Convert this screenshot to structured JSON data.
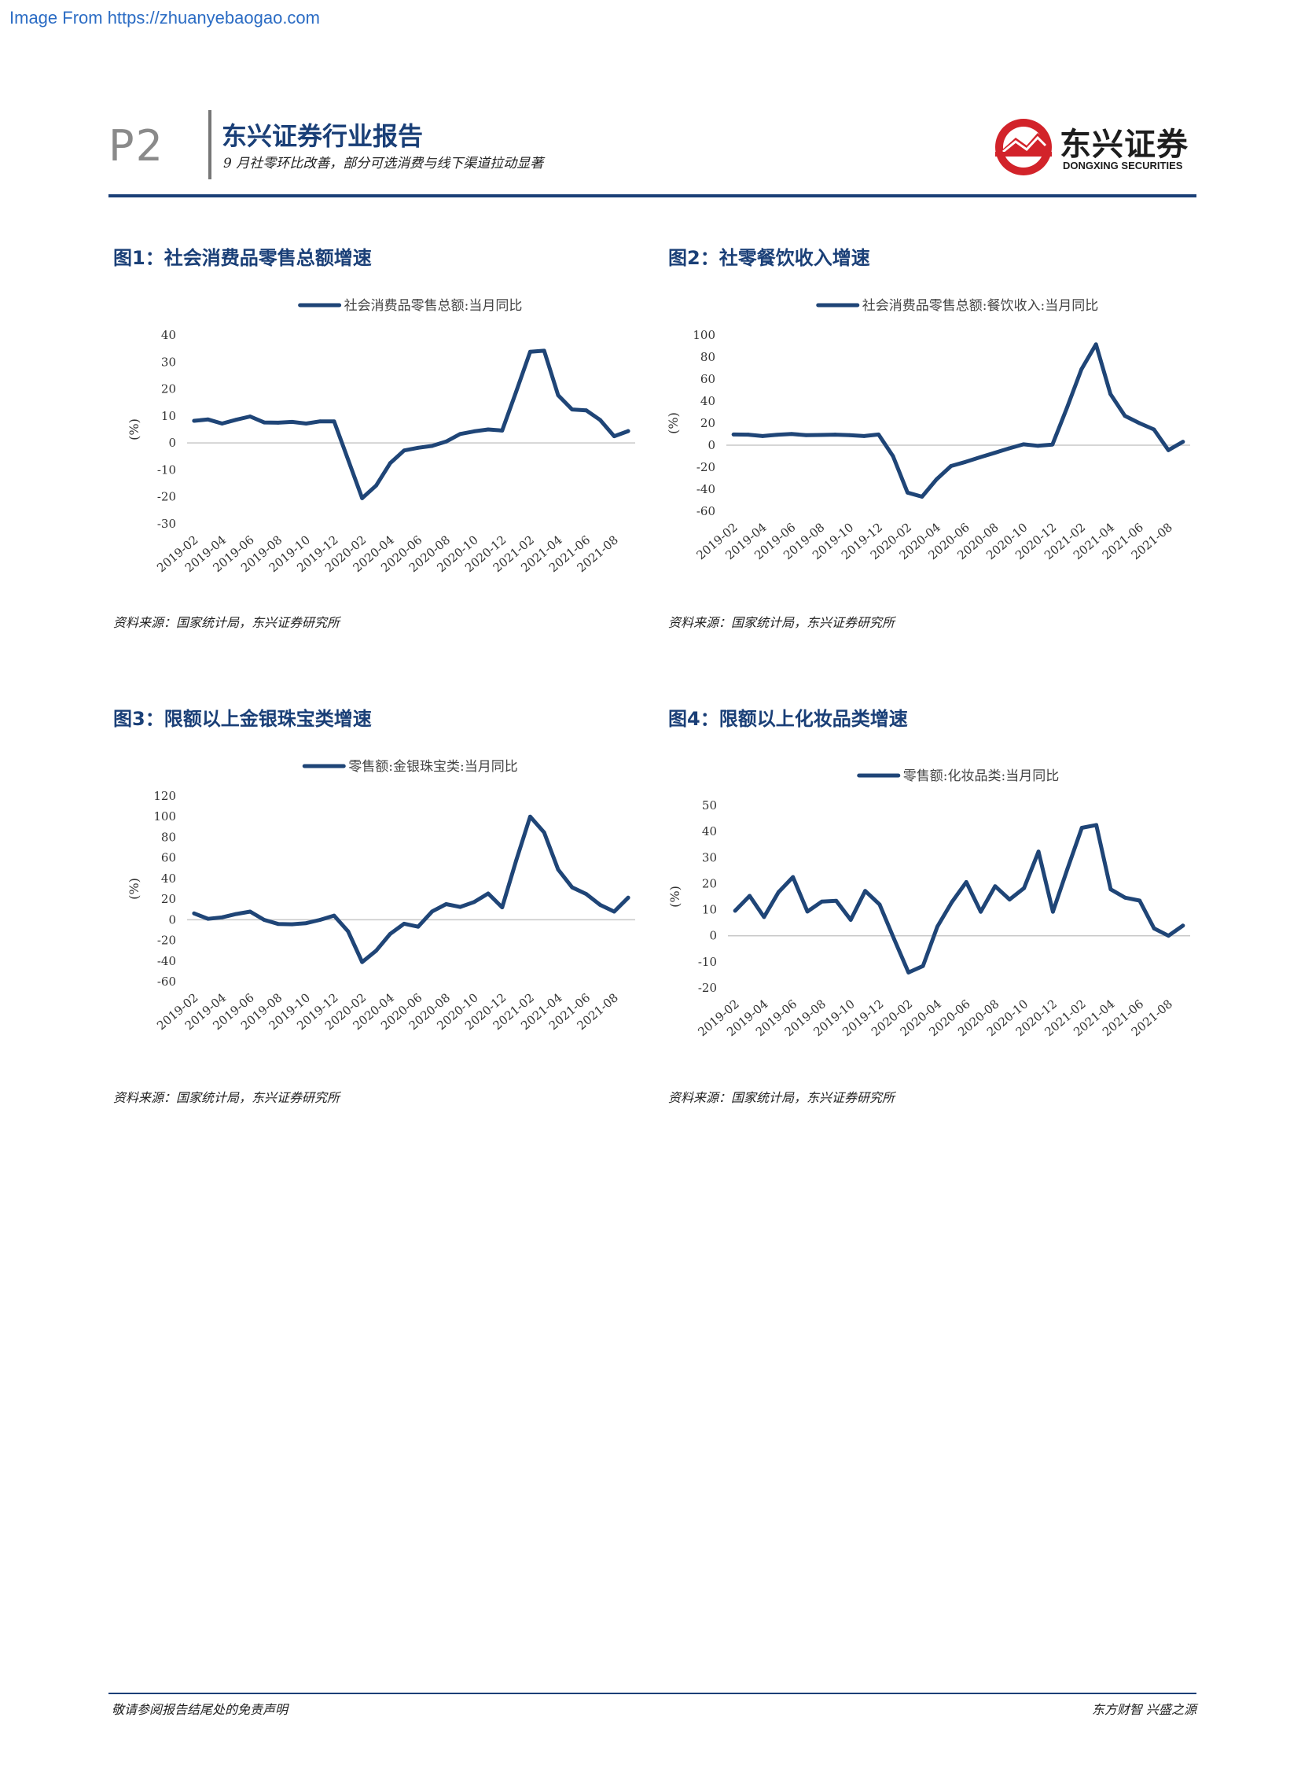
{
  "watermark": "Image From https://zhuanyebaogao.com",
  "header": {
    "page": "P2",
    "title": "东兴证券行业报告",
    "subtitle": "9 月社零环比改善，部分可选消费与线下渠道拉动显著",
    "logo_cn": "东兴证券",
    "logo_en": "DONGXING SECURITIES"
  },
  "colors": {
    "brand": "#1a3f77",
    "series": "#1f4577",
    "logo_red": "#d2232a"
  },
  "figures": [
    {
      "title": "图1：社会消费品零售总额增速",
      "source": "资料来源：国家统计局，东兴证券研究所",
      "unit_label": "(%)",
      "legend": "社会消费品零售总额:当月同比"
    },
    {
      "title": "图2：社零餐饮收入增速",
      "source": "资料来源：国家统计局，东兴证券研究所",
      "unit_label": "(%)",
      "legend": "社会消费品零售总额:餐饮收入:当月同比"
    },
    {
      "title": "图3：限额以上金银珠宝类增速",
      "source": "资料来源：国家统计局，东兴证券研究所",
      "unit_label": "(%)",
      "legend": "零售额:金银珠宝类:当月同比"
    },
    {
      "title": "图4：限额以上化妆品类增速",
      "source": "资料来源：国家统计局，东兴证券研究所",
      "unit_label": "(%)",
      "legend": "零售额:化妆品类:当月同比"
    }
  ],
  "chart_data": [
    {
      "type": "line",
      "x": [
        "2019-02",
        "2019-03",
        "2019-04",
        "2019-05",
        "2019-06",
        "2019-07",
        "2019-08",
        "2019-09",
        "2019-10",
        "2019-11",
        "2019-12",
        "2020-01",
        "2020-02",
        "2020-03",
        "2020-04",
        "2020-05",
        "2020-06",
        "2020-07",
        "2020-08",
        "2020-09",
        "2020-10",
        "2020-11",
        "2020-12",
        "2021-01",
        "2021-02",
        "2021-03",
        "2021-04",
        "2021-05",
        "2021-06",
        "2021-07",
        "2021-08",
        "2021-09"
      ],
      "x_tick_labels": [
        "2019-02",
        "2019-04",
        "2019-06",
        "2019-08",
        "2019-10",
        "2019-12",
        "2020-02",
        "2020-04",
        "2020-06",
        "2020-08",
        "2020-10",
        "2020-12",
        "2021-02",
        "2021-04",
        "2021-06",
        "2021-08"
      ],
      "series": [
        {
          "name": "社会消费品零售总额:当月同比",
          "values": [
            8.2,
            8.7,
            7.2,
            8.6,
            9.8,
            7.6,
            7.5,
            7.8,
            7.2,
            8.0,
            8.0,
            -6.2,
            -20.5,
            -15.8,
            -7.5,
            -2.8,
            -1.8,
            -1.1,
            0.5,
            3.3,
            4.3,
            5.0,
            4.6,
            19.0,
            33.8,
            34.2,
            17.7,
            12.4,
            12.1,
            8.5,
            2.5,
            4.4
          ]
        }
      ],
      "ylim": [
        -30,
        40
      ],
      "yticks": [
        40,
        30,
        20,
        10,
        0,
        -10,
        -20,
        -30
      ],
      "ylabel": "(%)"
    },
    {
      "type": "line",
      "x": [
        "2019-02",
        "2019-03",
        "2019-04",
        "2019-05",
        "2019-06",
        "2019-07",
        "2019-08",
        "2019-09",
        "2019-10",
        "2019-11",
        "2019-12",
        "2020-01",
        "2020-02",
        "2020-03",
        "2020-04",
        "2020-05",
        "2020-06",
        "2020-07",
        "2020-08",
        "2020-09",
        "2020-10",
        "2020-11",
        "2020-12",
        "2021-01",
        "2021-02",
        "2021-03",
        "2021-04",
        "2021-05",
        "2021-06",
        "2021-07",
        "2021-08",
        "2021-09"
      ],
      "x_tick_labels": [
        "2019-02",
        "2019-04",
        "2019-06",
        "2019-08",
        "2019-10",
        "2019-12",
        "2020-02",
        "2020-04",
        "2020-06",
        "2020-08",
        "2020-10",
        "2020-12",
        "2021-02",
        "2021-04",
        "2021-06",
        "2021-08"
      ],
      "series": [
        {
          "name": "社会消费品零售总额:餐饮收入:当月同比",
          "values": [
            9.7,
            9.6,
            8.3,
            9.4,
            10.2,
            9.1,
            9.3,
            9.6,
            9.1,
            8.3,
            9.7,
            -10.0,
            -43.1,
            -46.8,
            -31.1,
            -18.9,
            -15.2,
            -11.0,
            -7.0,
            -2.9,
            0.8,
            -0.6,
            0.6,
            34.0,
            68.9,
            91.6,
            46.4,
            26.6,
            20.0,
            14.3,
            -4.5,
            3.1
          ]
        }
      ],
      "ylim": [
        -60,
        100
      ],
      "yticks": [
        100,
        80,
        60,
        40,
        20,
        0,
        -20,
        -40,
        -60
      ],
      "ylabel": "(%)"
    },
    {
      "type": "line",
      "x": [
        "2019-02",
        "2019-03",
        "2019-04",
        "2019-05",
        "2019-06",
        "2019-07",
        "2019-08",
        "2019-09",
        "2019-10",
        "2019-11",
        "2019-12",
        "2020-01",
        "2020-02",
        "2020-03",
        "2020-04",
        "2020-05",
        "2020-06",
        "2020-07",
        "2020-08",
        "2020-09",
        "2020-10",
        "2020-11",
        "2020-12",
        "2021-01",
        "2021-02",
        "2021-03",
        "2021-04",
        "2021-05",
        "2021-06",
        "2021-07",
        "2021-08",
        "2021-09"
      ],
      "x_tick_labels": [
        "2019-02",
        "2019-04",
        "2019-06",
        "2019-08",
        "2019-10",
        "2019-12",
        "2020-02",
        "2020-04",
        "2020-06",
        "2020-08",
        "2020-10",
        "2020-12",
        "2021-02",
        "2021-04",
        "2021-06",
        "2021-08"
      ],
      "series": [
        {
          "name": "零售额:金银珠宝类:当月同比",
          "values": [
            6.1,
            0.9,
            2.3,
            5.5,
            7.9,
            -0.1,
            -4.1,
            -4.4,
            -3.3,
            -0.1,
            4.0,
            -11.3,
            -41.1,
            -30.0,
            -13.8,
            -3.9,
            -6.8,
            8.0,
            15.1,
            12.4,
            17.2,
            25.4,
            12.0,
            57.4,
            100.0,
            84.6,
            48.7,
            31.4,
            25.0,
            14.4,
            7.9,
            21.4
          ]
        }
      ],
      "ylim": [
        -60,
        120
      ],
      "yticks": [
        120,
        100,
        80,
        60,
        40,
        20,
        0,
        -20,
        -40,
        -60
      ],
      "ylabel": "(%)"
    },
    {
      "type": "line",
      "x": [
        "2019-02",
        "2019-03",
        "2019-04",
        "2019-05",
        "2019-06",
        "2019-07",
        "2019-08",
        "2019-09",
        "2019-10",
        "2019-11",
        "2019-12",
        "2020-01",
        "2020-02",
        "2020-03",
        "2020-04",
        "2020-05",
        "2020-06",
        "2020-07",
        "2020-08",
        "2020-09",
        "2020-10",
        "2020-11",
        "2020-12",
        "2021-01",
        "2021-02",
        "2021-03",
        "2021-04",
        "2021-05",
        "2021-06",
        "2021-07",
        "2021-08",
        "2021-09"
      ],
      "x_tick_labels": [
        "2019-02",
        "2019-04",
        "2019-06",
        "2019-08",
        "2019-10",
        "2019-12",
        "2020-02",
        "2020-04",
        "2020-06",
        "2020-08",
        "2020-10",
        "2020-12",
        "2021-02",
        "2021-04",
        "2021-06",
        "2021-08"
      ],
      "series": [
        {
          "name": "零售额:化妆品类:当月同比",
          "values": [
            9.6,
            15.3,
            7.2,
            16.7,
            22.5,
            9.3,
            13.1,
            13.4,
            6.1,
            17.2,
            12.0,
            -1.2,
            -14.1,
            -11.6,
            3.5,
            12.9,
            20.6,
            9.2,
            19.0,
            13.9,
            18.3,
            32.3,
            9.2,
            25.6,
            41.4,
            42.5,
            17.8,
            14.6,
            13.5,
            2.8,
            0.0,
            3.9
          ]
        }
      ],
      "ylim": [
        -20,
        50
      ],
      "yticks": [
        50,
        40,
        30,
        20,
        10,
        0,
        -10,
        -20
      ],
      "ylabel": "(%)"
    }
  ],
  "footer": {
    "left": "敬请参阅报告结尾处的免责声明",
    "right": "东方财智 兴盛之源"
  }
}
